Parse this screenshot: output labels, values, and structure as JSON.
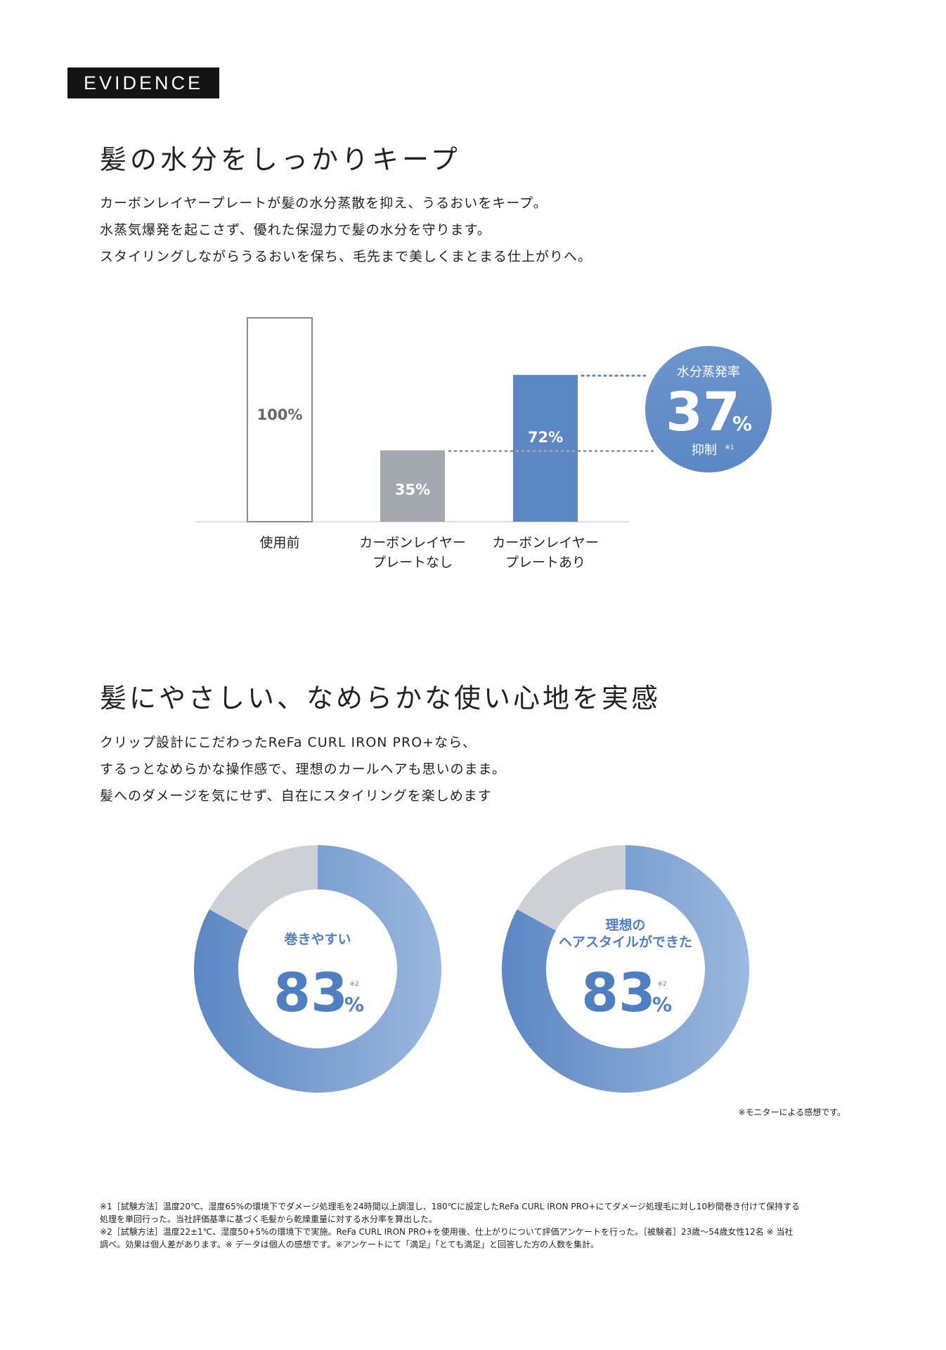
{
  "badge": "EVIDENCE",
  "section1": {
    "heading": "髪の水分をしっかりキープ",
    "lines": [
      "カーボンレイヤープレートが髪の水分蒸散を抑え、うるおいをキープ。",
      "水蒸気爆発を起こさず、優れた保湿力で髪の水分を守ります。",
      "スタイリングしながらうるおいを保ち、毛先まで美しくまとまる仕上がりへ。"
    ]
  },
  "chart_data": {
    "type": "bar",
    "categories": [
      "使用前",
      "カーボンレイヤー\nプレートなし",
      "カーボンレイヤー\nプレートあり"
    ],
    "category_lines": [
      [
        "使用前"
      ],
      [
        "カーボンレイヤー",
        "プレートなし"
      ],
      [
        "カーボンレイヤー",
        "プレートあり"
      ]
    ],
    "values": [
      100,
      35,
      72
    ],
    "value_labels": [
      "100%",
      "35%",
      "72%"
    ],
    "ylim": [
      0,
      100
    ],
    "colors": [
      "#ffffff",
      "#a2a8ae",
      "#5b87c4"
    ],
    "callout": {
      "top_text": "水分蒸発率",
      "number": "37",
      "unit": "%",
      "bottom_text": "抑制",
      "note": "※1",
      "color": "#5b87c4"
    }
  },
  "section2": {
    "heading": "髪にやさしい、なめらかな使い心地を実感",
    "lines": [
      "クリップ設計にこだわったReFa CURL IRON PRO+なら、",
      "するっとなめらかな操作感で、理想のカールヘアも思いのまま。",
      "髪へのダメージを気にせず、自在にスタイリングを楽しめます"
    ]
  },
  "donuts": [
    {
      "label_lines": [
        "巻きやすい"
      ],
      "value": 83,
      "value_text": "83",
      "unit": "%",
      "note": "※2"
    },
    {
      "label_lines": [
        "理想の",
        "ヘアスタイルができた"
      ],
      "value": 83,
      "value_text": "83",
      "unit": "%",
      "note": "※2"
    }
  ],
  "monitor_note": "※モニターによる感想です。",
  "footnotes": [
    "※1［試験方法］温度20℃、湿度65%の環境下でダメージ処理毛を24時間以上調湿し、180℃に設定したReFa CURL IRON PRO+にてダメージ処理毛に対し10秒間巻き付けて保持する",
    "処理を単回行った。当社評価基準に基づく毛髪から乾燥重量に対する水分率を算出した。",
    "※2［試験方法］温度22±1℃、湿度50+5%の環境下で実施。ReFa CURL IRON PRO+を使用後、仕上がりについて評価アンケートを行った。［被験者］23歳～54歳女性12名 ※ 当社",
    "調べ。効果は個人差があります。※ データは個人の感想です。※アンケートにて「満足」「とても満足」と回答した方の人数を集計。"
  ],
  "colors": {
    "accent": "#5b87c4",
    "accent_light": "#9bb8de",
    "gray": "#a2a8ae",
    "donut_rest": "#cdd1d6"
  }
}
